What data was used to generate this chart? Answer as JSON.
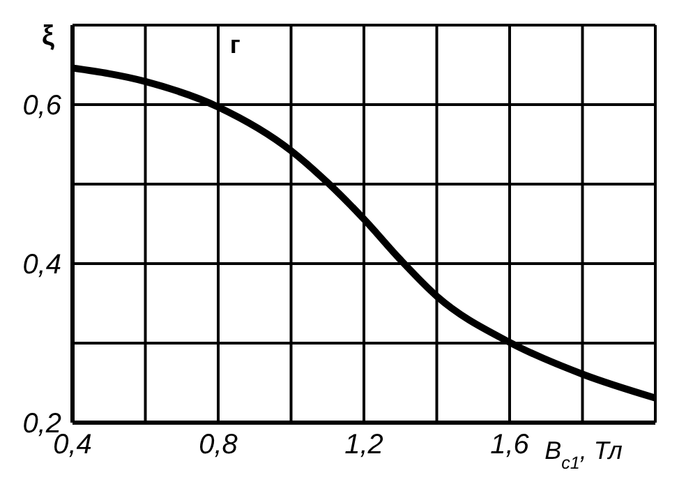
{
  "chart_data": {
    "type": "line",
    "xlabel": "B$_{c1}$, Тл",
    "ylabel": "ξ",
    "annotations": [
      "г"
    ],
    "x": [
      0.4,
      0.6,
      0.8,
      1.0,
      1.1,
      1.2,
      1.3,
      1.4,
      1.6,
      1.8,
      2.0
    ],
    "series": [
      {
        "color": "#000000",
        "values": [
          0.646,
          0.629,
          0.597,
          0.542,
          0.502,
          0.456,
          0.405,
          0.359,
          0.301,
          0.261,
          0.231
        ]
      }
    ],
    "xlim": [
      0.4,
      2.0
    ],
    "xticks": [
      {
        "value": 0.4,
        "label": "0,4"
      },
      {
        "value": 0.6,
        "label": null
      },
      {
        "value": 0.8,
        "label": "0,8"
      },
      {
        "value": 1.0,
        "label": null
      },
      {
        "value": 1.2,
        "label": "1,2"
      },
      {
        "value": 1.4,
        "label": null
      },
      {
        "value": 1.6,
        "label": "1,6"
      },
      {
        "value": 1.8,
        "label": null
      },
      {
        "value": 2.0,
        "label": null
      }
    ],
    "ylim": [
      0.2,
      0.7
    ],
    "yticks": [
      {
        "value": 0.2,
        "label": "0,2"
      },
      {
        "value": 0.3,
        "label": null
      },
      {
        "value": 0.4,
        "label": "0,4"
      },
      {
        "value": 0.5,
        "label": null
      },
      {
        "value": 0.6,
        "label": "0,6"
      },
      {
        "value": 0.7,
        "label": null
      }
    ],
    "grid": true,
    "marker": "none",
    "line_style": "solid"
  }
}
